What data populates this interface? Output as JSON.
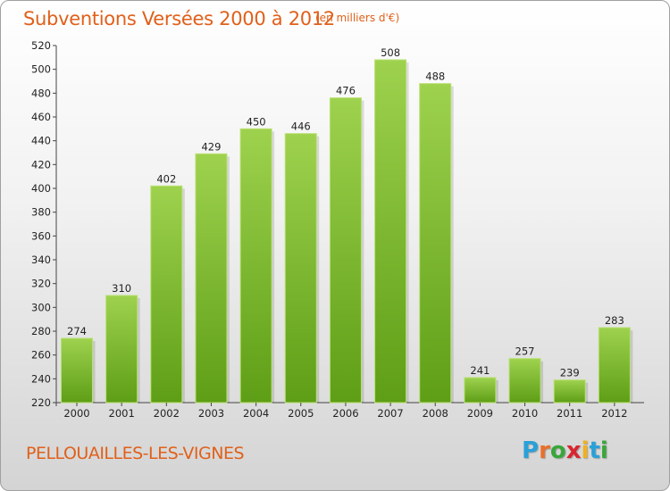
{
  "header": {
    "title": "Subventions Versées 2000 à 2012",
    "subtitle": "(en milliers d'€)"
  },
  "footer": {
    "commune": "PELLOUAILLES-LES-VIGNES",
    "logo_letters": [
      "P",
      "r",
      "o",
      "x",
      "i",
      "t",
      "i"
    ],
    "logo_colors": [
      "#2aa0d8",
      "#e8702a",
      "#3aa63a",
      "#d8262e",
      "#f0b020",
      "#2aa0d8",
      "#3aa63a"
    ]
  },
  "chart_data": {
    "type": "bar",
    "title": "Subventions Versées 2000 à 2012",
    "subtitle": "(en milliers d'€)",
    "categories": [
      "2000",
      "2001",
      "2002",
      "2003",
      "2004",
      "2005",
      "2006",
      "2007",
      "2008",
      "2009",
      "2010",
      "2011",
      "2012"
    ],
    "values": [
      274,
      310,
      402,
      429,
      450,
      446,
      476,
      508,
      488,
      241,
      257,
      239,
      283
    ],
    "ylim": [
      220,
      520
    ],
    "yticks": [
      220,
      240,
      260,
      280,
      300,
      320,
      340,
      360,
      380,
      400,
      420,
      440,
      460,
      480,
      500,
      520
    ],
    "grid": false,
    "bar_color": "#7fc030",
    "xlabel": "",
    "ylabel": ""
  }
}
